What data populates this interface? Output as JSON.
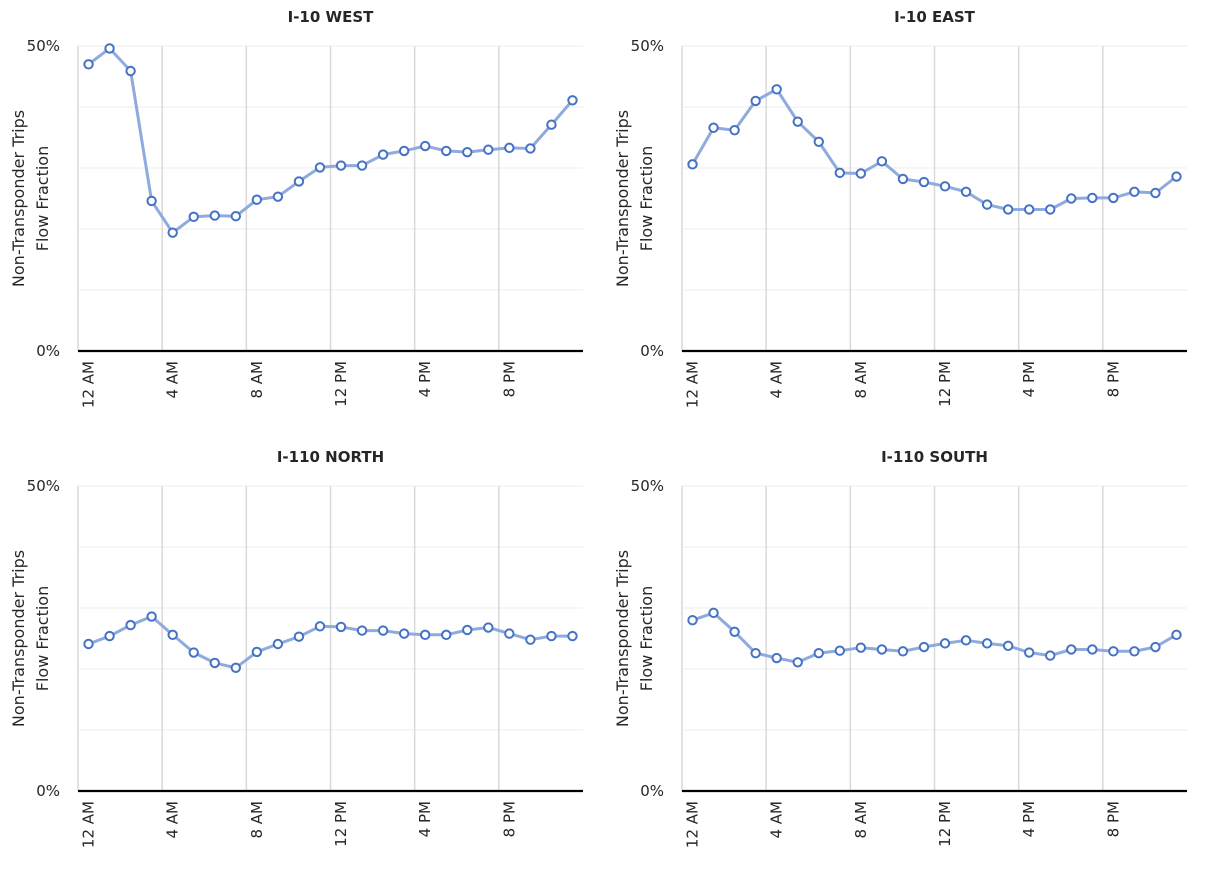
{
  "colors": {
    "series": "#8FAADC",
    "marker_stroke": "#4472C4",
    "grid": "#d9d9d9",
    "axis": "#000000"
  },
  "chart_data": [
    {
      "type": "line",
      "title": "I-10 WEST",
      "ylabel": [
        "Non-Transponder Trips",
        "Flow Fraction"
      ],
      "ylim": [
        0,
        50
      ],
      "yticks": [
        "0%",
        "50%"
      ],
      "xticks": [
        "12 AM",
        "4 AM",
        "8 AM",
        "12 PM",
        "4 PM",
        "8 PM"
      ],
      "grid": true,
      "x": [
        0,
        1,
        2,
        3,
        4,
        5,
        6,
        7,
        8,
        9,
        10,
        11,
        12,
        13,
        14,
        15,
        16,
        17,
        18,
        19,
        20,
        21,
        22,
        23
      ],
      "series": [
        {
          "values": [
            47.0,
            49.6,
            45.9,
            24.6,
            19.4,
            22.0,
            22.2,
            22.1,
            24.8,
            25.3,
            27.8,
            30.1,
            30.4,
            30.4,
            32.2,
            32.8,
            33.6,
            32.8,
            32.6,
            33.0,
            33.3,
            33.2,
            37.1,
            41.1
          ]
        }
      ]
    },
    {
      "type": "line",
      "title": "I-10 EAST",
      "ylabel": [
        "Non-Transponder Trips",
        "Flow Fraction"
      ],
      "ylim": [
        0,
        50
      ],
      "yticks": [
        "0%",
        "50%"
      ],
      "xticks": [
        "12 AM",
        "4 AM",
        "8 AM",
        "12 PM",
        "4 PM",
        "8 PM"
      ],
      "grid": true,
      "x": [
        0,
        1,
        2,
        3,
        4,
        5,
        6,
        7,
        8,
        9,
        10,
        11,
        12,
        13,
        14,
        15,
        16,
        17,
        18,
        19,
        20,
        21,
        22,
        23
      ],
      "series": [
        {
          "values": [
            30.6,
            36.6,
            36.2,
            41.0,
            42.9,
            37.6,
            34.3,
            29.2,
            29.1,
            31.1,
            28.2,
            27.7,
            27.0,
            26.1,
            24.0,
            23.2,
            23.2,
            23.2,
            25.0,
            25.1,
            25.1,
            26.1,
            25.9,
            28.6
          ]
        }
      ]
    },
    {
      "type": "line",
      "title": "I-110 NORTH",
      "ylabel": [
        "Non-Transponder Trips",
        "Flow Fraction"
      ],
      "ylim": [
        0,
        50
      ],
      "yticks": [
        "0%",
        "50%"
      ],
      "xticks": [
        "12 AM",
        "4 AM",
        "8 AM",
        "12 PM",
        "4 PM",
        "8 PM"
      ],
      "grid": true,
      "x": [
        0,
        1,
        2,
        3,
        4,
        5,
        6,
        7,
        8,
        9,
        10,
        11,
        12,
        13,
        14,
        15,
        16,
        17,
        18,
        19,
        20,
        21,
        22,
        23
      ],
      "series": [
        {
          "values": [
            24.1,
            25.4,
            27.2,
            28.6,
            25.6,
            22.7,
            21.0,
            20.2,
            22.8,
            24.1,
            25.3,
            27.0,
            26.9,
            26.3,
            26.3,
            25.8,
            25.6,
            25.6,
            26.4,
            26.8,
            25.8,
            24.8,
            25.4,
            25.4
          ]
        }
      ]
    },
    {
      "type": "line",
      "title": "I-110 SOUTH",
      "ylabel": [
        "Non-Transponder Trips",
        "Flow Fraction"
      ],
      "ylim": [
        0,
        50
      ],
      "yticks": [
        "0%",
        "50%"
      ],
      "xticks": [
        "12 AM",
        "4 AM",
        "8 AM",
        "12 PM",
        "4 PM",
        "8 PM"
      ],
      "grid": true,
      "x": [
        0,
        1,
        2,
        3,
        4,
        5,
        6,
        7,
        8,
        9,
        10,
        11,
        12,
        13,
        14,
        15,
        16,
        17,
        18,
        19,
        20,
        21,
        22,
        23
      ],
      "series": [
        {
          "values": [
            28.0,
            29.2,
            26.1,
            22.6,
            21.8,
            21.1,
            22.6,
            23.0,
            23.5,
            23.2,
            22.9,
            23.6,
            24.2,
            24.7,
            24.2,
            23.8,
            22.7,
            22.2,
            23.2,
            23.2,
            22.9,
            22.9,
            23.6,
            25.6
          ]
        }
      ]
    }
  ]
}
